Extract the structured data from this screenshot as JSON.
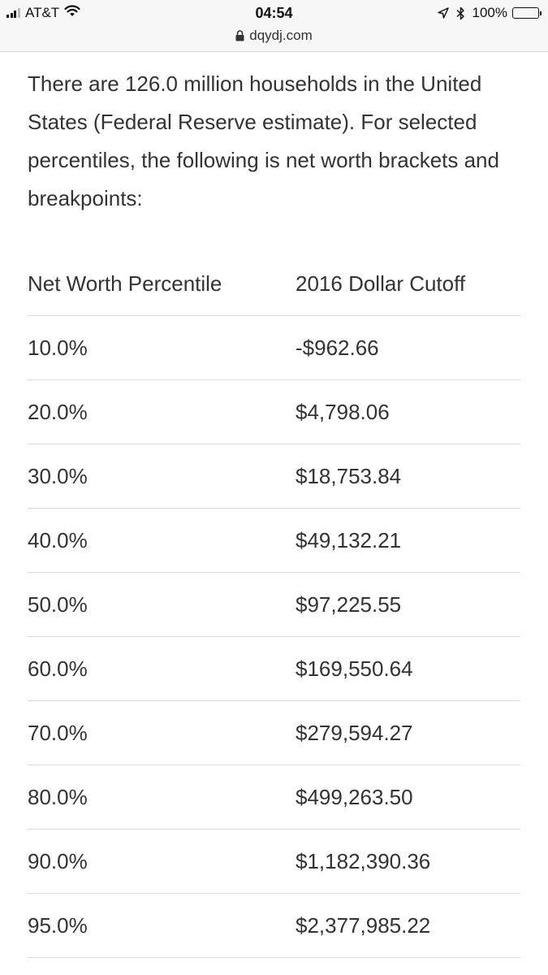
{
  "status_bar": {
    "carrier": "AT&T",
    "time": "04:54",
    "battery_label": "100%",
    "icons": [
      "signal-icon",
      "wifi-icon",
      "location-arrow-icon",
      "bluetooth-icon",
      "battery-icon"
    ]
  },
  "url_bar": {
    "domain": "dqydj.com",
    "icon": "lock-icon"
  },
  "article": {
    "intro": "There are 126.0 million households in the United States (Federal Reserve estimate). For selected percentiles, the following is net worth brackets and breakpoints:"
  },
  "table": {
    "headers": [
      "Net Worth Percentile",
      "2016 Dollar Cutoff"
    ],
    "rows": [
      {
        "percentile": "10.0%",
        "cutoff": "-$962.66"
      },
      {
        "percentile": "20.0%",
        "cutoff": "$4,798.06"
      },
      {
        "percentile": "30.0%",
        "cutoff": "$18,753.84"
      },
      {
        "percentile": "40.0%",
        "cutoff": "$49,132.21"
      },
      {
        "percentile": "50.0%",
        "cutoff": "$97,225.55"
      },
      {
        "percentile": "60.0%",
        "cutoff": "$169,550.64"
      },
      {
        "percentile": "70.0%",
        "cutoff": "$279,594.27"
      },
      {
        "percentile": "80.0%",
        "cutoff": "$499,263.50"
      },
      {
        "percentile": "90.0%",
        "cutoff": "$1,182,390.36"
      },
      {
        "percentile": "95.0%",
        "cutoff": "$2,377,985.22"
      }
    ]
  },
  "colors": {
    "status_bar_bg": "#f7f7f7",
    "text": "#333333",
    "divider": "#d9d9d9"
  }
}
